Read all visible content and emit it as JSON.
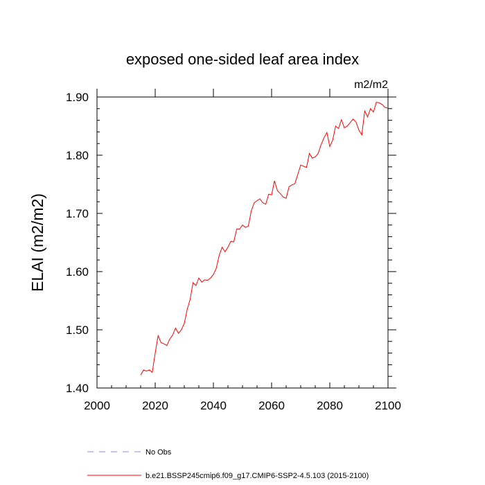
{
  "chart_data": {
    "type": "line",
    "title": "exposed one-sided leaf area index",
    "units": "m2/m2",
    "ylabel": "ELAI  (m2/m2)",
    "xlabel": "",
    "xlim": [
      2000,
      2100
    ],
    "ylim": [
      1.4,
      1.9
    ],
    "x_ticks": [
      "2000",
      "2020",
      "2040",
      "2060",
      "2080",
      "2100"
    ],
    "y_ticks": [
      "1.40",
      "1.50",
      "1.60",
      "1.70",
      "1.80",
      "1.90"
    ],
    "grid": false,
    "legend_position": "bottom",
    "legend": [
      {
        "label": "No Obs",
        "color": "#8a8aff",
        "style": "dashed"
      },
      {
        "label": "b.e21.BSSP245cmip6.f09_g17.CMIP6-SSP2-4.5.103 (2015-2100)",
        "color": "#ff0000",
        "style": "solid"
      }
    ],
    "series": [
      {
        "name": "b.e21.BSSP245cmip6.f09_g17.CMIP6-SSP2-4.5.103 (2015-2100)",
        "color": "#ff0000",
        "x": [
          2015,
          2016,
          2017,
          2018,
          2019,
          2020,
          2021,
          2022,
          2023,
          2024,
          2025,
          2026,
          2027,
          2028,
          2029,
          2030,
          2031,
          2032,
          2033,
          2034,
          2035,
          2036,
          2037,
          2038,
          2039,
          2040,
          2041,
          2042,
          2043,
          2044,
          2045,
          2046,
          2047,
          2048,
          2049,
          2050,
          2051,
          2052,
          2053,
          2054,
          2055,
          2056,
          2057,
          2058,
          2059,
          2060,
          2061,
          2062,
          2063,
          2064,
          2065,
          2066,
          2067,
          2068,
          2069,
          2070,
          2071,
          2072,
          2073,
          2074,
          2075,
          2076,
          2077,
          2078,
          2079,
          2080,
          2081,
          2082,
          2083,
          2084,
          2085,
          2086,
          2087,
          2088,
          2089,
          2090,
          2091,
          2092,
          2093,
          2094,
          2095,
          2096,
          2097,
          2098,
          2099,
          2100
        ],
        "y": [
          1.422,
          1.431,
          1.429,
          1.431,
          1.427,
          1.46,
          1.49,
          1.478,
          1.476,
          1.473,
          1.484,
          1.491,
          1.503,
          1.494,
          1.5,
          1.511,
          1.535,
          1.552,
          1.581,
          1.576,
          1.589,
          1.582,
          1.586,
          1.585,
          1.589,
          1.595,
          1.606,
          1.628,
          1.642,
          1.634,
          1.642,
          1.652,
          1.651,
          1.673,
          1.673,
          1.68,
          1.676,
          1.678,
          1.704,
          1.718,
          1.722,
          1.725,
          1.718,
          1.716,
          1.733,
          1.732,
          1.756,
          1.739,
          1.734,
          1.728,
          1.726,
          1.746,
          1.749,
          1.751,
          1.767,
          1.783,
          1.781,
          1.779,
          1.803,
          1.795,
          1.797,
          1.803,
          1.818,
          1.83,
          1.839,
          1.815,
          1.826,
          1.85,
          1.846,
          1.861,
          1.847,
          1.85,
          1.856,
          1.862,
          1.857,
          1.843,
          1.835,
          1.876,
          1.866,
          1.88,
          1.874,
          1.891,
          1.89,
          1.887,
          1.882,
          1.881
        ]
      }
    ]
  }
}
